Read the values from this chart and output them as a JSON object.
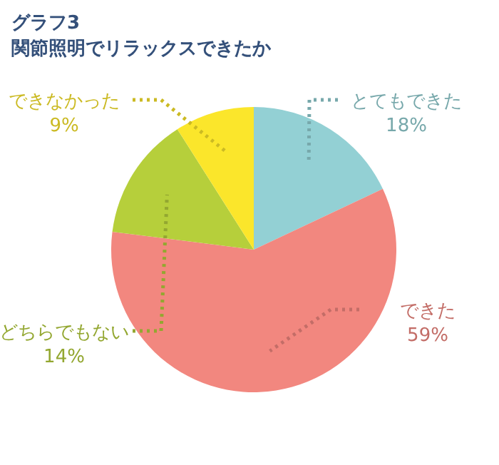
{
  "chart_data": {
    "type": "pie",
    "title": "グラフ3",
    "subtitle": "関節照明でリラックスできたか",
    "categories": [
      "とてもできた",
      "できた",
      "どちらでもない",
      "できなかった"
    ],
    "values": [
      18,
      59,
      14,
      9
    ],
    "colors": [
      "#93d0d4",
      "#f2877f",
      "#b6cf3b",
      "#fbe62b"
    ],
    "value_labels": [
      "18%",
      "59%",
      "14%",
      "9%"
    ]
  }
}
